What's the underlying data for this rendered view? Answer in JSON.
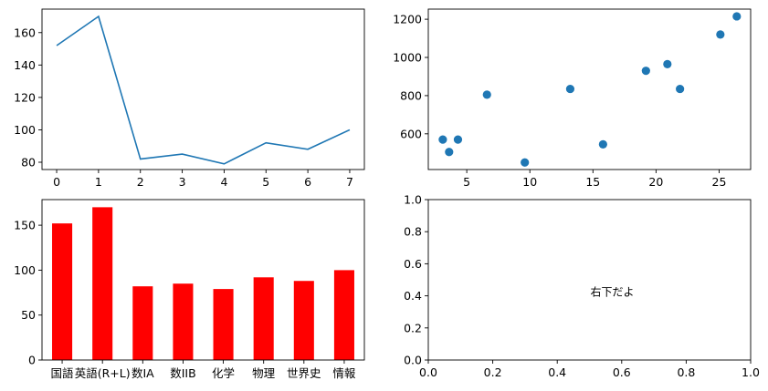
{
  "chart_data": [
    {
      "type": "line",
      "position": "top-left",
      "x": [
        0,
        1,
        2,
        3,
        4,
        5,
        6,
        7
      ],
      "series": [
        {
          "values": [
            152,
            170,
            82,
            85,
            79,
            92,
            88,
            100
          ]
        }
      ],
      "color": "#1f77b4",
      "xlim": [
        -0.35,
        7.35
      ],
      "ylim": [
        75.5,
        174.5
      ],
      "xticks": [
        0,
        1,
        2,
        3,
        4,
        5,
        6,
        7
      ],
      "yticks": [
        80,
        100,
        120,
        140,
        160
      ],
      "title": "",
      "xlabel": "",
      "ylabel": ""
    },
    {
      "type": "scatter",
      "position": "top-right",
      "points": [
        {
          "x": 3.1,
          "y": 570
        },
        {
          "x": 3.6,
          "y": 505
        },
        {
          "x": 4.3,
          "y": 570
        },
        {
          "x": 6.6,
          "y": 805
        },
        {
          "x": 9.6,
          "y": 450
        },
        {
          "x": 13.2,
          "y": 835
        },
        {
          "x": 15.8,
          "y": 545
        },
        {
          "x": 19.2,
          "y": 930
        },
        {
          "x": 20.9,
          "y": 965
        },
        {
          "x": 21.9,
          "y": 835
        },
        {
          "x": 25.1,
          "y": 1120
        },
        {
          "x": 26.4,
          "y": 1215
        }
      ],
      "color": "#1f77b4",
      "xlim": [
        1.95,
        27.5
      ],
      "ylim": [
        413,
        1253
      ],
      "xticks": [
        5,
        10,
        15,
        20,
        25
      ],
      "yticks": [
        600,
        800,
        1000,
        1200
      ],
      "title": "",
      "xlabel": "",
      "ylabel": ""
    },
    {
      "type": "bar",
      "position": "bottom-left",
      "categories": [
        "国語",
        "英語(R+L)",
        "数IA",
        "数IIB",
        "化学",
        "物理",
        "世界史",
        "情報"
      ],
      "values": [
        152,
        170,
        82,
        85,
        79,
        92,
        88,
        100
      ],
      "color": "#ff0000",
      "ylim": [
        0,
        178.5
      ],
      "yticks": [
        0,
        50,
        100,
        150
      ],
      "title": "",
      "xlabel": "",
      "ylabel": ""
    },
    {
      "type": "scatter",
      "position": "bottom-right",
      "points": [],
      "xlim": [
        0,
        1
      ],
      "ylim": [
        0,
        1
      ],
      "xticks": [
        0.0,
        0.2,
        0.4,
        0.6,
        0.8,
        1.0
      ],
      "yticks": [
        0.0,
        0.2,
        0.4,
        0.6,
        0.8,
        1.0
      ],
      "tick_format": "fixed1",
      "annotation": {
        "text": "右下だよ",
        "x": 0.5,
        "y": 0.4
      },
      "title": "",
      "xlabel": "",
      "ylabel": ""
    }
  ]
}
